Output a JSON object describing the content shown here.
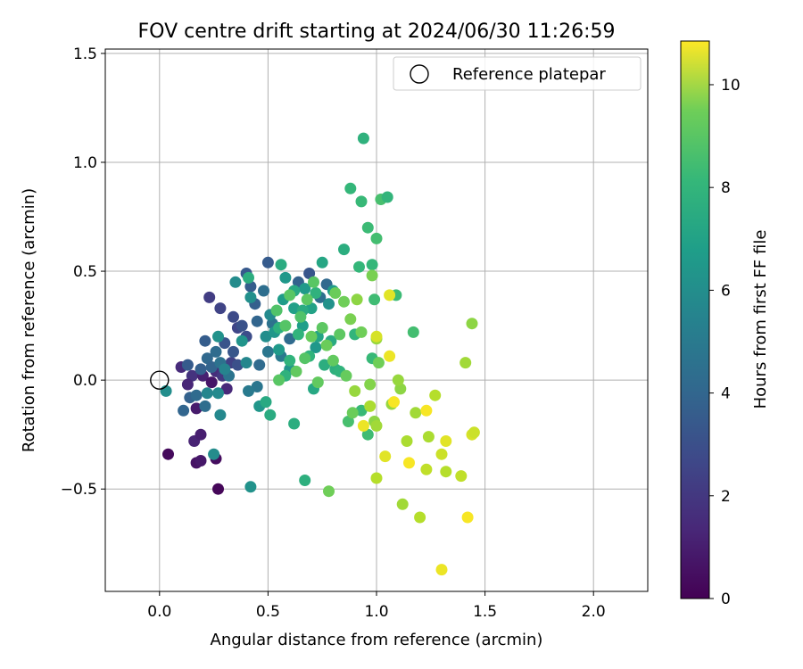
{
  "chart_data": {
    "type": "scatter",
    "title": "FOV centre drift starting at 2024/06/30 11:26:59",
    "xlabel": "Angular distance from reference (arcmin)",
    "ylabel": "Rotation from reference (arcmin)",
    "xlim": [
      -0.25,
      2.25
    ],
    "ylim": [
      -0.97,
      1.52
    ],
    "xticks": [
      0.0,
      0.5,
      1.0,
      1.5,
      2.0
    ],
    "xtick_labels": [
      "0.0",
      "0.5",
      "1.0",
      "1.5",
      "2.0"
    ],
    "yticks": [
      -0.5,
      0.0,
      0.5,
      1.0,
      1.5
    ],
    "ytick_labels": [
      "−0.5",
      "0.0",
      "0.5",
      "1.0",
      "1.5"
    ],
    "grid": true,
    "legend": {
      "position": "top-right",
      "entries": [
        "Reference platepar"
      ]
    },
    "reference_point": {
      "x": 0.0,
      "y": 0.0,
      "label": "Reference platepar"
    },
    "colorbar": {
      "label": "Hours from first FF file",
      "colormap": "viridis",
      "range": [
        0,
        10.85
      ],
      "ticks": [
        0,
        2,
        4,
        6,
        8,
        10
      ],
      "tick_labels": [
        "0",
        "2",
        "4",
        "6",
        "8",
        "10"
      ]
    },
    "points": [
      {
        "x": 0.04,
        "y": -0.34,
        "t": 0.3
      },
      {
        "x": 0.27,
        "y": -0.5,
        "t": 0.2
      },
      {
        "x": 0.17,
        "y": -0.38,
        "t": 0.6
      },
      {
        "x": 0.19,
        "y": -0.37,
        "t": 0.8
      },
      {
        "x": 0.26,
        "y": -0.36,
        "t": 0.4
      },
      {
        "x": 0.16,
        "y": -0.28,
        "t": 1.2
      },
      {
        "x": 0.19,
        "y": -0.25,
        "t": 1.0
      },
      {
        "x": 0.17,
        "y": -0.13,
        "t": 0.9
      },
      {
        "x": 0.1,
        "y": 0.06,
        "t": 1.5
      },
      {
        "x": 0.15,
        "y": 0.02,
        "t": 1.8
      },
      {
        "x": 0.13,
        "y": -0.02,
        "t": 1.3
      },
      {
        "x": 0.23,
        "y": 0.38,
        "t": 2.2
      },
      {
        "x": 0.2,
        "y": 0.02,
        "t": 1.1
      },
      {
        "x": 0.24,
        "y": -0.01,
        "t": 0.7
      },
      {
        "x": 0.26,
        "y": 0.04,
        "t": 1.6
      },
      {
        "x": 0.29,
        "y": 0.02,
        "t": 2.0
      },
      {
        "x": 0.31,
        "y": -0.04,
        "t": 1.4
      },
      {
        "x": 0.33,
        "y": 0.08,
        "t": 2.4
      },
      {
        "x": 0.28,
        "y": 0.33,
        "t": 2.5
      },
      {
        "x": 0.34,
        "y": 0.29,
        "t": 2.8
      },
      {
        "x": 0.36,
        "y": 0.24,
        "t": 2.6
      },
      {
        "x": 0.11,
        "y": -0.14,
        "t": 4.0
      },
      {
        "x": 0.14,
        "y": -0.08,
        "t": 3.8
      },
      {
        "x": 0.17,
        "y": -0.07,
        "t": 4.2
      },
      {
        "x": 0.13,
        "y": 0.07,
        "t": 3.5
      },
      {
        "x": 0.19,
        "y": 0.05,
        "t": 3.7
      },
      {
        "x": 0.21,
        "y": 0.18,
        "t": 3.6
      },
      {
        "x": 0.22,
        "y": 0.1,
        "t": 4.1
      },
      {
        "x": 0.24,
        "y": 0.06,
        "t": 3.9
      },
      {
        "x": 0.21,
        "y": -0.12,
        "t": 4.4
      },
      {
        "x": 0.26,
        "y": 0.13,
        "t": 4.3
      },
      {
        "x": 0.28,
        "y": 0.08,
        "t": 4.6
      },
      {
        "x": 0.3,
        "y": 0.17,
        "t": 3.2
      },
      {
        "x": 0.32,
        "y": 0.02,
        "t": 4.7
      },
      {
        "x": 0.34,
        "y": 0.13,
        "t": 3.3
      },
      {
        "x": 0.36,
        "y": 0.07,
        "t": 3.0
      },
      {
        "x": 0.38,
        "y": 0.25,
        "t": 3.1
      },
      {
        "x": 0.4,
        "y": 0.2,
        "t": 2.9
      },
      {
        "x": 0.4,
        "y": 0.49,
        "t": 3.4
      },
      {
        "x": 0.42,
        "y": 0.43,
        "t": 3.6
      },
      {
        "x": 0.44,
        "y": 0.35,
        "t": 3.7
      },
      {
        "x": 0.45,
        "y": 0.27,
        "t": 4.0
      },
      {
        "x": 0.46,
        "y": 0.07,
        "t": 4.2
      },
      {
        "x": 0.45,
        "y": -0.03,
        "t": 4.8
      },
      {
        "x": 0.41,
        "y": -0.05,
        "t": 5.0
      },
      {
        "x": 0.5,
        "y": 0.54,
        "t": 3.5
      },
      {
        "x": 0.48,
        "y": 0.41,
        "t": 4.4
      },
      {
        "x": 0.52,
        "y": 0.26,
        "t": 4.6
      },
      {
        "x": 0.5,
        "y": 0.13,
        "t": 4.8
      },
      {
        "x": 0.56,
        "y": 0.11,
        "t": 5.0
      },
      {
        "x": 0.6,
        "y": 0.19,
        "t": 4.2
      },
      {
        "x": 0.64,
        "y": 0.45,
        "t": 3.8
      },
      {
        "x": 0.69,
        "y": 0.49,
        "t": 3.3
      },
      {
        "x": 0.74,
        "y": 0.38,
        "t": 4.5
      },
      {
        "x": 0.77,
        "y": 0.44,
        "t": 4.1
      },
      {
        "x": 0.03,
        "y": -0.05,
        "t": 6.0
      },
      {
        "x": 0.25,
        "y": -0.34,
        "t": 5.9
      },
      {
        "x": 0.22,
        "y": -0.06,
        "t": 5.6
      },
      {
        "x": 0.27,
        "y": -0.06,
        "t": 5.8
      },
      {
        "x": 0.28,
        "y": -0.16,
        "t": 5.7
      },
      {
        "x": 0.27,
        "y": 0.2,
        "t": 6.2
      },
      {
        "x": 0.3,
        "y": 0.05,
        "t": 5.5
      },
      {
        "x": 0.35,
        "y": 0.45,
        "t": 5.9
      },
      {
        "x": 0.38,
        "y": 0.18,
        "t": 6.3
      },
      {
        "x": 0.4,
        "y": 0.08,
        "t": 5.6
      },
      {
        "x": 0.42,
        "y": 0.38,
        "t": 6.1
      },
      {
        "x": 0.42,
        "y": -0.49,
        "t": 6.2
      },
      {
        "x": 0.46,
        "y": -0.12,
        "t": 6.4
      },
      {
        "x": 0.49,
        "y": 0.2,
        "t": 6.0
      },
      {
        "x": 0.51,
        "y": 0.3,
        "t": 5.8
      },
      {
        "x": 0.53,
        "y": 0.22,
        "t": 6.4
      },
      {
        "x": 0.55,
        "y": 0.14,
        "t": 6.6
      },
      {
        "x": 0.57,
        "y": 0.37,
        "t": 6.7
      },
      {
        "x": 0.58,
        "y": 0.47,
        "t": 6.5
      },
      {
        "x": 0.6,
        "y": 0.05,
        "t": 6.3
      },
      {
        "x": 0.62,
        "y": 0.33,
        "t": 6.9
      },
      {
        "x": 0.66,
        "y": 0.25,
        "t": 6.8
      },
      {
        "x": 0.67,
        "y": 0.42,
        "t": 6.6
      },
      {
        "x": 0.7,
        "y": 0.33,
        "t": 7.0
      },
      {
        "x": 0.72,
        "y": 0.15,
        "t": 6.5
      },
      {
        "x": 0.73,
        "y": 0.2,
        "t": 7.1
      },
      {
        "x": 0.78,
        "y": 0.35,
        "t": 6.2
      },
      {
        "x": 0.8,
        "y": 0.41,
        "t": 6.7
      },
      {
        "x": 0.41,
        "y": 0.47,
        "t": 7.6
      },
      {
        "x": 0.49,
        "y": -0.1,
        "t": 7.4
      },
      {
        "x": 0.51,
        "y": -0.16,
        "t": 7.5
      },
      {
        "x": 0.55,
        "y": 0.24,
        "t": 7.7
      },
      {
        "x": 0.56,
        "y": 0.53,
        "t": 7.5
      },
      {
        "x": 0.58,
        "y": 0.02,
        "t": 7.8
      },
      {
        "x": 0.6,
        "y": 0.09,
        "t": 7.9
      },
      {
        "x": 0.62,
        "y": -0.2,
        "t": 7.6
      },
      {
        "x": 0.62,
        "y": 0.41,
        "t": 7.4
      },
      {
        "x": 0.64,
        "y": 0.21,
        "t": 7.9
      },
      {
        "x": 0.66,
        "y": 0.32,
        "t": 7.5
      },
      {
        "x": 0.67,
        "y": -0.46,
        "t": 7.7
      },
      {
        "x": 0.69,
        "y": 0.11,
        "t": 7.9
      },
      {
        "x": 0.71,
        "y": -0.04,
        "t": 7.3
      },
      {
        "x": 0.72,
        "y": 0.4,
        "t": 7.8
      },
      {
        "x": 0.75,
        "y": 0.54,
        "t": 7.2
      },
      {
        "x": 0.76,
        "y": 0.07,
        "t": 7.6
      },
      {
        "x": 0.79,
        "y": 0.18,
        "t": 7.5
      },
      {
        "x": 0.81,
        "y": 0.05,
        "t": 7.7
      },
      {
        "x": 0.83,
        "y": 0.04,
        "t": 7.9
      },
      {
        "x": 0.85,
        "y": 0.6,
        "t": 7.6
      },
      {
        "x": 0.88,
        "y": 0.88,
        "t": 8.1
      },
      {
        "x": 0.9,
        "y": 0.21,
        "t": 8.0
      },
      {
        "x": 0.92,
        "y": 0.52,
        "t": 8.1
      },
      {
        "x": 0.93,
        "y": 0.82,
        "t": 8.2
      },
      {
        "x": 0.94,
        "y": 1.11,
        "t": 7.8
      },
      {
        "x": 0.96,
        "y": 0.7,
        "t": 8.3
      },
      {
        "x": 0.98,
        "y": 0.1,
        "t": 8.2
      },
      {
        "x": 0.99,
        "y": 0.37,
        "t": 8.4
      },
      {
        "x": 1.0,
        "y": 0.65,
        "t": 8.5
      },
      {
        "x": 1.02,
        "y": 0.83,
        "t": 8.6
      },
      {
        "x": 1.05,
        "y": 0.84,
        "t": 8.0
      },
      {
        "x": 1.09,
        "y": 0.39,
        "t": 8.3
      },
      {
        "x": 1.17,
        "y": 0.22,
        "t": 8.5
      },
      {
        "x": 0.93,
        "y": -0.14,
        "t": 8.2
      },
      {
        "x": 0.96,
        "y": -0.25,
        "t": 8.4
      },
      {
        "x": 0.87,
        "y": -0.19,
        "t": 8.6
      },
      {
        "x": 0.98,
        "y": 0.53,
        "t": 8.1
      },
      {
        "x": 0.54,
        "y": 0.32,
        "t": 8.8
      },
      {
        "x": 0.55,
        "y": 0.0,
        "t": 9.0
      },
      {
        "x": 0.58,
        "y": 0.25,
        "t": 8.9
      },
      {
        "x": 0.6,
        "y": 0.39,
        "t": 9.0
      },
      {
        "x": 0.63,
        "y": 0.04,
        "t": 9.2
      },
      {
        "x": 0.65,
        "y": 0.29,
        "t": 8.8
      },
      {
        "x": 0.67,
        "y": 0.1,
        "t": 8.9
      },
      {
        "x": 0.68,
        "y": 0.37,
        "t": 9.1
      },
      {
        "x": 0.7,
        "y": 0.2,
        "t": 9.3
      },
      {
        "x": 0.71,
        "y": 0.45,
        "t": 9.0
      },
      {
        "x": 0.73,
        "y": -0.01,
        "t": 9.2
      },
      {
        "x": 0.75,
        "y": 0.24,
        "t": 9.1
      },
      {
        "x": 0.77,
        "y": 0.16,
        "t": 9.4
      },
      {
        "x": 0.78,
        "y": -0.51,
        "t": 9.5
      },
      {
        "x": 0.8,
        "y": 0.09,
        "t": 9.2
      },
      {
        "x": 0.81,
        "y": 0.4,
        "t": 9.4
      },
      {
        "x": 0.83,
        "y": 0.21,
        "t": 9.1
      },
      {
        "x": 0.85,
        "y": 0.36,
        "t": 9.5
      },
      {
        "x": 0.86,
        "y": 0.02,
        "t": 9.3
      },
      {
        "x": 0.88,
        "y": 0.28,
        "t": 9.6
      },
      {
        "x": 0.89,
        "y": -0.15,
        "t": 9.4
      },
      {
        "x": 0.91,
        "y": 0.37,
        "t": 9.8
      },
      {
        "x": 0.93,
        "y": 0.22,
        "t": 9.5
      },
      {
        "x": 0.97,
        "y": -0.02,
        "t": 9.7
      },
      {
        "x": 0.98,
        "y": 0.48,
        "t": 9.6
      },
      {
        "x": 1.0,
        "y": 0.19,
        "t": 9.9
      },
      {
        "x": 1.01,
        "y": 0.08,
        "t": 9.5
      },
      {
        "x": 0.9,
        "y": -0.05,
        "t": 9.9
      },
      {
        "x": 0.97,
        "y": -0.12,
        "t": 10.1
      },
      {
        "x": 0.99,
        "y": -0.19,
        "t": 9.8
      },
      {
        "x": 1.0,
        "y": -0.21,
        "t": 10.0
      },
      {
        "x": 1.07,
        "y": -0.11,
        "t": 9.9
      },
      {
        "x": 1.11,
        "y": -0.04,
        "t": 9.8
      },
      {
        "x": 1.1,
        "y": 0.0,
        "t": 9.9
      },
      {
        "x": 1.18,
        "y": -0.15,
        "t": 10.0
      },
      {
        "x": 1.14,
        "y": -0.28,
        "t": 10.1
      },
      {
        "x": 1.2,
        "y": -0.63,
        "t": 10.2
      },
      {
        "x": 1.12,
        "y": -0.57,
        "t": 10.0
      },
      {
        "x": 1.23,
        "y": -0.41,
        "t": 10.3
      },
      {
        "x": 1.24,
        "y": -0.26,
        "t": 10.1
      },
      {
        "x": 1.27,
        "y": -0.07,
        "t": 10.2
      },
      {
        "x": 1.3,
        "y": -0.34,
        "t": 10.4
      },
      {
        "x": 1.32,
        "y": -0.28,
        "t": 10.6
      },
      {
        "x": 1.32,
        "y": -0.42,
        "t": 10.2
      },
      {
        "x": 1.3,
        "y": -0.87,
        "t": 10.7
      },
      {
        "x": 1.39,
        "y": -0.44,
        "t": 10.3
      },
      {
        "x": 1.42,
        "y": -0.63,
        "t": 10.8
      },
      {
        "x": 1.44,
        "y": -0.25,
        "t": 10.5
      },
      {
        "x": 1.45,
        "y": -0.24,
        "t": 10.4
      },
      {
        "x": 1.41,
        "y": 0.08,
        "t": 10.0
      },
      {
        "x": 1.44,
        "y": 0.26,
        "t": 9.8
      },
      {
        "x": 1.0,
        "y": -0.45,
        "t": 10.2
      },
      {
        "x": 1.04,
        "y": -0.35,
        "t": 10.6
      },
      {
        "x": 1.06,
        "y": 0.11,
        "t": 10.7
      },
      {
        "x": 1.06,
        "y": 0.39,
        "t": 10.6
      },
      {
        "x": 1.08,
        "y": -0.1,
        "t": 10.8
      },
      {
        "x": 1.23,
        "y": -0.14,
        "t": 10.8
      },
      {
        "x": 1.15,
        "y": -0.38,
        "t": 10.8
      },
      {
        "x": 0.94,
        "y": -0.21,
        "t": 10.7
      },
      {
        "x": 1.0,
        "y": 0.2,
        "t": 10.5
      }
    ]
  }
}
